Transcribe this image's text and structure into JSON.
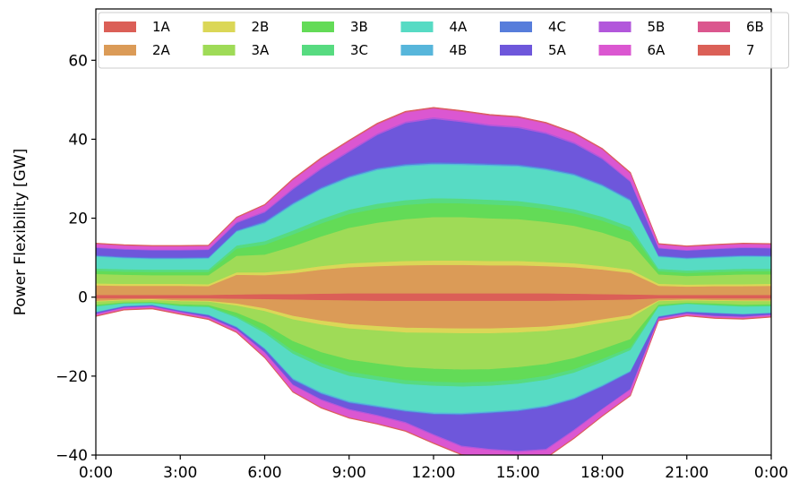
{
  "chart_data": {
    "type": "area",
    "title": "",
    "xlabel": "",
    "ylabel": "Power Flexibility [GW]",
    "xlim": [
      0,
      24
    ],
    "ylim": [
      -40,
      73
    ],
    "x_ticks": [
      0,
      3,
      6,
      9,
      12,
      15,
      18,
      21,
      24
    ],
    "x_tick_labels": [
      "0:00",
      "3:00",
      "6:00",
      "9:00",
      "12:00",
      "15:00",
      "18:00",
      "21:00",
      "0:00"
    ],
    "y_ticks": [
      -40,
      -20,
      0,
      20,
      40,
      60
    ],
    "y_tick_labels": [
      "−40",
      "−20",
      "0",
      "20",
      "40",
      "60"
    ],
    "grid": false,
    "legend_position": "top",
    "legend_columns": 7,
    "legend_order": [
      "1A",
      "2B",
      "3B",
      "4A",
      "4C",
      "5B",
      "6B",
      "2A",
      "3A",
      "3C",
      "4B",
      "5A",
      "6A",
      "7"
    ],
    "x": [
      0,
      1,
      2,
      3,
      4,
      5,
      6,
      7,
      8,
      9,
      10,
      11,
      12,
      13,
      14,
      15,
      16,
      17,
      18,
      19,
      20,
      21,
      22,
      23,
      24
    ],
    "upper_series": [
      {
        "name": "1A",
        "color": "#db5f57",
        "values": [
          0.6,
          0.6,
          0.6,
          0.6,
          0.6,
          0.7,
          0.8,
          0.8,
          0.9,
          1.0,
          1.0,
          1.0,
          1.0,
          1.0,
          1.0,
          1.0,
          1.0,
          0.9,
          0.8,
          0.7,
          0.6,
          0.6,
          0.6,
          0.6,
          0.6
        ]
      },
      {
        "name": "2A",
        "color": "#db9b57",
        "values": [
          2.4,
          2.3,
          2.3,
          2.3,
          2.2,
          5.0,
          4.8,
          5.3,
          6.1,
          6.6,
          6.9,
          7.1,
          7.2,
          7.2,
          7.1,
          7.1,
          6.9,
          6.7,
          6.2,
          5.5,
          2.3,
          2.1,
          2.2,
          2.2,
          2.3
        ]
      },
      {
        "name": "2B",
        "color": "#dbd757",
        "values": [
          0.5,
          0.5,
          0.5,
          0.5,
          0.5,
          0.6,
          0.7,
          0.8,
          0.9,
          1.0,
          1.0,
          1.1,
          1.1,
          1.1,
          1.1,
          1.1,
          1.0,
          1.0,
          0.9,
          0.8,
          0.5,
          0.5,
          0.5,
          0.5,
          0.5
        ]
      },
      {
        "name": "3A",
        "color": "#9fdb57",
        "values": [
          2.4,
          2.3,
          2.2,
          2.2,
          2.3,
          4.2,
          4.5,
          6.0,
          7.5,
          9.0,
          10.0,
          10.6,
          11.0,
          11.0,
          10.8,
          10.6,
          10.2,
          9.5,
          8.5,
          7.0,
          2.4,
          2.2,
          2.3,
          2.5,
          2.4
        ]
      },
      {
        "name": "3B",
        "color": "#63db57",
        "values": [
          0.8,
          0.8,
          0.8,
          0.8,
          0.8,
          1.8,
          2.5,
          3.0,
          3.3,
          3.5,
          3.6,
          3.6,
          3.6,
          3.5,
          3.5,
          3.4,
          3.3,
          3.1,
          3.0,
          2.8,
          0.8,
          0.8,
          0.8,
          0.8,
          0.8
        ]
      },
      {
        "name": "3C",
        "color": "#57db80",
        "values": [
          0.6,
          0.6,
          0.6,
          0.6,
          0.6,
          0.8,
          0.9,
          1.0,
          1.1,
          1.1,
          1.2,
          1.2,
          1.2,
          1.2,
          1.2,
          1.2,
          1.1,
          1.1,
          1.0,
          1.0,
          0.6,
          0.6,
          0.6,
          0.6,
          0.6
        ]
      },
      {
        "name": "4A",
        "color": "#57dbc4",
        "values": [
          3.0,
          2.8,
          2.7,
          2.7,
          2.8,
          3.5,
          4.5,
          6.5,
          7.5,
          8.0,
          8.5,
          8.6,
          8.5,
          8.5,
          8.6,
          8.7,
          8.7,
          8.5,
          7.7,
          6.5,
          3.0,
          2.9,
          3.0,
          3.1,
          3.0
        ]
      },
      {
        "name": "4B",
        "color": "#57b6db",
        "values": [
          0.2,
          0.2,
          0.2,
          0.2,
          0.2,
          0.2,
          0.3,
          0.3,
          0.3,
          0.3,
          0.3,
          0.3,
          0.3,
          0.3,
          0.3,
          0.3,
          0.3,
          0.3,
          0.3,
          0.3,
          0.2,
          0.2,
          0.2,
          0.2,
          0.2
        ]
      },
      {
        "name": "4C",
        "color": "#577ddb",
        "values": [
          0.2,
          0.2,
          0.2,
          0.2,
          0.2,
          0.2,
          0.3,
          0.3,
          0.3,
          0.3,
          0.3,
          0.3,
          0.3,
          0.3,
          0.3,
          0.3,
          0.3,
          0.3,
          0.3,
          0.3,
          0.2,
          0.2,
          0.2,
          0.2,
          0.2
        ]
      },
      {
        "name": "5A",
        "color": "#6e57db",
        "values": [
          1.8,
          1.8,
          1.8,
          1.8,
          1.8,
          1.8,
          2.2,
          3.3,
          4.5,
          6.0,
          8.3,
          10.3,
          11.0,
          10.3,
          9.5,
          9.2,
          8.6,
          7.5,
          6.3,
          4.3,
          1.8,
          1.7,
          1.8,
          1.8,
          1.8
        ]
      },
      {
        "name": "5B",
        "color": "#b257db",
        "values": [
          0.2,
          0.2,
          0.2,
          0.2,
          0.2,
          0.3,
          0.3,
          0.4,
          0.4,
          0.4,
          0.4,
          0.4,
          0.4,
          0.4,
          0.4,
          0.4,
          0.4,
          0.4,
          0.4,
          0.3,
          0.2,
          0.2,
          0.2,
          0.2,
          0.2
        ]
      },
      {
        "name": "6A",
        "color": "#db57d1",
        "values": [
          0.8,
          0.8,
          0.8,
          0.8,
          0.8,
          1.0,
          1.5,
          2.0,
          2.2,
          2.3,
          2.3,
          2.3,
          2.2,
          2.2,
          2.2,
          2.2,
          2.2,
          2.1,
          2.0,
          1.8,
          0.8,
          0.8,
          0.8,
          0.8,
          0.8
        ]
      },
      {
        "name": "6B",
        "color": "#db578e",
        "values": [
          0.1,
          0.1,
          0.1,
          0.1,
          0.1,
          0.1,
          0.1,
          0.2,
          0.2,
          0.2,
          0.2,
          0.2,
          0.2,
          0.2,
          0.2,
          0.2,
          0.2,
          0.2,
          0.2,
          0.2,
          0.1,
          0.1,
          0.1,
          0.1,
          0.1
        ]
      },
      {
        "name": "7",
        "color": "#db6057",
        "values": [
          0.1,
          0.1,
          0.1,
          0.1,
          0.1,
          0.1,
          0.1,
          0.1,
          0.1,
          0.1,
          0.1,
          0.1,
          0.1,
          0.1,
          0.1,
          0.1,
          0.1,
          0.1,
          0.1,
          0.1,
          0.1,
          0.1,
          0.1,
          0.1,
          0.1
        ]
      }
    ],
    "lower_series": [
      {
        "name": "1A",
        "color": "#db5f57",
        "values": [
          -0.4,
          -0.4,
          -0.4,
          -0.4,
          -0.4,
          -0.5,
          -0.6,
          -0.7,
          -0.8,
          -0.9,
          -1.0,
          -1.0,
          -1.0,
          -1.0,
          -1.0,
          -1.0,
          -1.0,
          -0.9,
          -0.8,
          -0.7,
          -0.4,
          -0.4,
          -0.4,
          -0.4,
          -0.4
        ]
      },
      {
        "name": "2A",
        "color": "#db9b57",
        "values": [
          -0.6,
          -0.3,
          -0.2,
          -0.5,
          -0.6,
          -1.2,
          -2.3,
          -4.1,
          -5.2,
          -6.0,
          -6.4,
          -6.8,
          -6.9,
          -7.0,
          -7.0,
          -6.8,
          -6.5,
          -5.9,
          -4.9,
          -3.9,
          -0.5,
          -0.3,
          -0.4,
          -0.5,
          -0.5
        ]
      },
      {
        "name": "2B",
        "color": "#dbd757",
        "values": [
          -0.2,
          -0.2,
          -0.2,
          -0.2,
          -0.2,
          -0.5,
          -0.7,
          -0.9,
          -1.0,
          -1.1,
          -1.1,
          -1.2,
          -1.2,
          -1.2,
          -1.2,
          -1.2,
          -1.1,
          -1.0,
          -0.9,
          -0.8,
          -0.2,
          -0.2,
          -0.2,
          -0.2,
          -0.2
        ]
      },
      {
        "name": "3A",
        "color": "#9fdb57",
        "values": [
          -0.8,
          -0.5,
          -0.5,
          -0.8,
          -0.9,
          -1.8,
          -3.4,
          -5.5,
          -7.0,
          -7.9,
          -8.4,
          -8.8,
          -9.1,
          -9.2,
          -9.1,
          -8.8,
          -8.4,
          -7.7,
          -6.6,
          -5.3,
          -0.9,
          -0.6,
          -0.7,
          -0.9,
          -0.8
        ]
      },
      {
        "name": "3B",
        "color": "#63db57",
        "values": [
          -0.3,
          -0.2,
          -0.2,
          -0.3,
          -0.3,
          -0.9,
          -1.6,
          -2.4,
          -2.8,
          -3.1,
          -3.2,
          -3.3,
          -3.3,
          -3.3,
          -3.2,
          -3.2,
          -3.0,
          -2.8,
          -2.5,
          -2.1,
          -0.3,
          -0.2,
          -0.3,
          -0.3,
          -0.3
        ]
      },
      {
        "name": "3C",
        "color": "#57db80",
        "values": [
          -0.2,
          -0.1,
          -0.1,
          -0.2,
          -0.2,
          -0.4,
          -0.6,
          -0.8,
          -0.9,
          -1.0,
          -1.0,
          -1.0,
          -1.0,
          -1.0,
          -1.0,
          -1.0,
          -1.0,
          -0.9,
          -0.8,
          -0.7,
          -0.2,
          -0.1,
          -0.2,
          -0.2,
          -0.2
        ]
      },
      {
        "name": "4A",
        "color": "#57dbc4",
        "values": [
          -1.3,
          -0.6,
          -0.4,
          -1.0,
          -1.9,
          -2.2,
          -3.8,
          -6.2,
          -6.4,
          -6.4,
          -6.4,
          -6.5,
          -6.8,
          -6.7,
          -6.5,
          -6.5,
          -6.5,
          -6.3,
          -5.8,
          -5.2,
          -2.4,
          -1.9,
          -1.8,
          -1.8,
          -1.6
        ]
      },
      {
        "name": "4B",
        "color": "#57b6db",
        "values": [
          -0.1,
          -0.1,
          -0.1,
          -0.1,
          -0.1,
          -0.2,
          -0.2,
          -0.3,
          -0.3,
          -0.3,
          -0.3,
          -0.3,
          -0.3,
          -0.3,
          -0.3,
          -0.3,
          -0.3,
          -0.3,
          -0.3,
          -0.2,
          -0.1,
          -0.1,
          -0.1,
          -0.1,
          -0.1
        ]
      },
      {
        "name": "4C",
        "color": "#577ddb",
        "values": [
          -0.1,
          -0.1,
          -0.1,
          -0.1,
          -0.1,
          -0.1,
          -0.2,
          -0.2,
          -0.2,
          -0.2,
          -0.2,
          -0.2,
          -0.2,
          -0.2,
          -0.2,
          -0.2,
          -0.2,
          -0.2,
          -0.2,
          -0.2,
          -0.1,
          -0.1,
          -0.1,
          -0.1,
          -0.1
        ]
      },
      {
        "name": "5A",
        "color": "#6e57db",
        "values": [
          -0.3,
          -0.2,
          -0.2,
          -0.2,
          -0.4,
          -0.4,
          -0.6,
          -1.1,
          -1.3,
          -1.5,
          -1.9,
          -2.6,
          -5.0,
          -7.8,
          -9.0,
          -10.0,
          -10.5,
          -7.6,
          -5.5,
          -4.2,
          -0.3,
          -0.3,
          -0.6,
          -0.5,
          -0.3
        ]
      },
      {
        "name": "5B",
        "color": "#b257db",
        "values": [
          -0.1,
          -0.1,
          -0.1,
          -0.1,
          -0.1,
          -0.1,
          -0.2,
          -0.2,
          -0.3,
          -0.3,
          -0.3,
          -0.3,
          -0.3,
          -0.3,
          -0.3,
          -0.3,
          -0.3,
          -0.3,
          -0.2,
          -0.2,
          -0.1,
          -0.1,
          -0.1,
          -0.1,
          -0.1
        ]
      },
      {
        "name": "6A",
        "color": "#db57d1",
        "values": [
          -0.3,
          -0.3,
          -0.3,
          -0.3,
          -0.3,
          -0.5,
          -1.0,
          -1.5,
          -1.7,
          -1.8,
          -1.8,
          -1.8,
          -1.8,
          -1.8,
          -1.8,
          -1.8,
          -1.8,
          -1.7,
          -1.5,
          -1.3,
          -0.3,
          -0.3,
          -0.3,
          -0.3,
          -0.3
        ]
      },
      {
        "name": "6B",
        "color": "#db578e",
        "values": [
          -0.1,
          -0.1,
          -0.1,
          -0.1,
          -0.1,
          -0.1,
          -0.1,
          -0.1,
          -0.1,
          -0.1,
          -0.1,
          -0.1,
          -0.1,
          -0.1,
          -0.1,
          -0.1,
          -0.1,
          -0.1,
          -0.1,
          -0.1,
          -0.1,
          -0.1,
          -0.1,
          -0.1,
          -0.1
        ]
      },
      {
        "name": "7",
        "color": "#db6057",
        "values": [
          -0.1,
          -0.1,
          -0.1,
          -0.1,
          -0.1,
          -0.1,
          -0.1,
          -0.1,
          -0.1,
          -0.1,
          -0.1,
          -0.1,
          -0.1,
          -0.1,
          -0.1,
          -0.1,
          -0.1,
          -0.1,
          -0.1,
          -0.1,
          -0.1,
          -0.1,
          -0.1,
          -0.1,
          -0.1
        ]
      }
    ]
  }
}
